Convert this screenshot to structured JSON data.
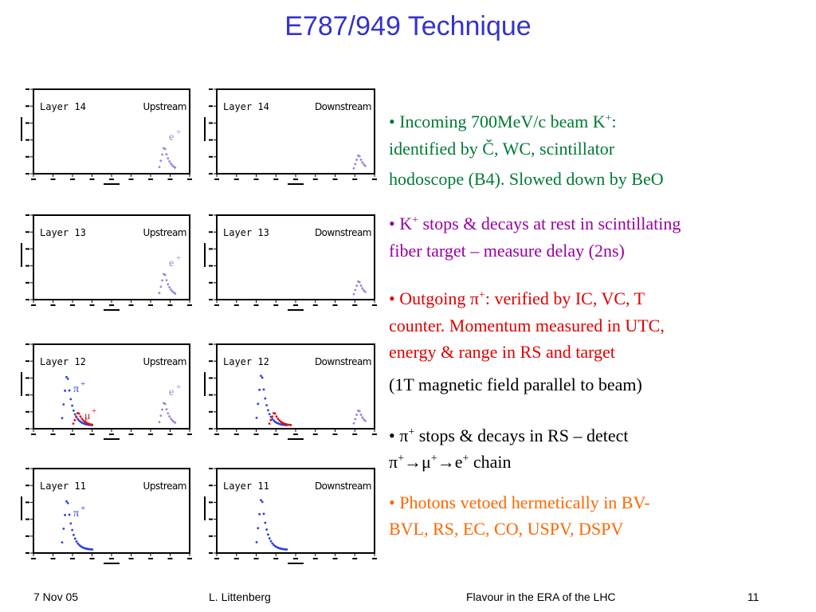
{
  "title": "E787/949 Technique",
  "panels": [
    {
      "layer": "Layer 14",
      "side": "Upstream",
      "labels": [
        {
          "text": "e",
          "sup": "+",
          "color": "#9a7fe6"
        }
      ]
    },
    {
      "layer": "Layer 14",
      "side": "Downstream",
      "labels": []
    },
    {
      "layer": "Layer 13",
      "side": "Upstream",
      "labels": [
        {
          "text": "e",
          "sup": "+",
          "color": "#9a7fe6"
        }
      ]
    },
    {
      "layer": "Layer 13",
      "side": "Downstream",
      "labels": []
    },
    {
      "layer": "Layer 12",
      "side": "Upstream",
      "labels": [
        {
          "text": "π",
          "sup": "+",
          "color": "#2a40e0"
        },
        {
          "text": "μ",
          "sup": "+",
          "color": "#e01010"
        },
        {
          "text": "e",
          "sup": "+",
          "color": "#9a7fe6"
        }
      ]
    },
    {
      "layer": "Layer 12",
      "side": "Downstream",
      "labels": []
    },
    {
      "layer": "Layer 11",
      "side": "Upstream",
      "labels": [
        {
          "text": "π",
          "sup": "+",
          "color": "#2a40e0"
        }
      ]
    },
    {
      "layer": "Layer 11",
      "side": "Downstream",
      "labels": []
    }
  ],
  "lines": [
    {
      "color": "#007a33",
      "runs": [
        "• Incoming 700MeV/c beam K",
        {
          "sup": "+"
        },
        ":"
      ]
    },
    {
      "color": "#007a33",
      "runs": [
        "identified by Č, WC, scintillator"
      ]
    },
    {
      "color": "#007a33",
      "runs": [
        "hodoscope (B4). Slowed down by BeO"
      ]
    },
    {
      "color": "#9900a0",
      "runs": [
        "• K",
        {
          "sup": "+"
        },
        " stops & decays at rest in scintillating"
      ]
    },
    {
      "color": "#9900a0",
      "runs": [
        "fiber target – measure delay (2ns)"
      ]
    },
    {
      "color": "#e00000",
      "runs": [
        "• Outgoing π",
        {
          "sup": "+"
        },
        ": verified by IC, VC, T"
      ]
    },
    {
      "color": "#e00000",
      "runs": [
        "counter. Momentum measured in UTC,"
      ]
    },
    {
      "color": "#e00000",
      "runs": [
        "energy & range in RS and target"
      ]
    },
    {
      "color": "#000000",
      "runs": [
        "(1T magnetic field parallel to beam)"
      ]
    },
    {
      "color": "#000000",
      "runs": [
        "• π",
        {
          "sup": "+"
        },
        " stops & decays in RS – detect"
      ]
    },
    {
      "color": "#000000",
      "runs": [
        "π",
        {
          "sup": "+"
        },
        "→μ",
        {
          "sup": "+"
        },
        "→e",
        {
          "sup": "+"
        },
        " chain"
      ]
    },
    {
      "color": "#ff6600",
      "runs": [
        "• Photons vetoed hermetically in BV-"
      ]
    },
    {
      "color": "#ff6600",
      "runs": [
        "BVL, RS, EC, CO, USPV, DSPV"
      ]
    }
  ],
  "footer": {
    "date": "7 Nov 05",
    "author": "L. Littenberg",
    "event": "Flavour in the ERA of the LHC",
    "page": "11"
  }
}
